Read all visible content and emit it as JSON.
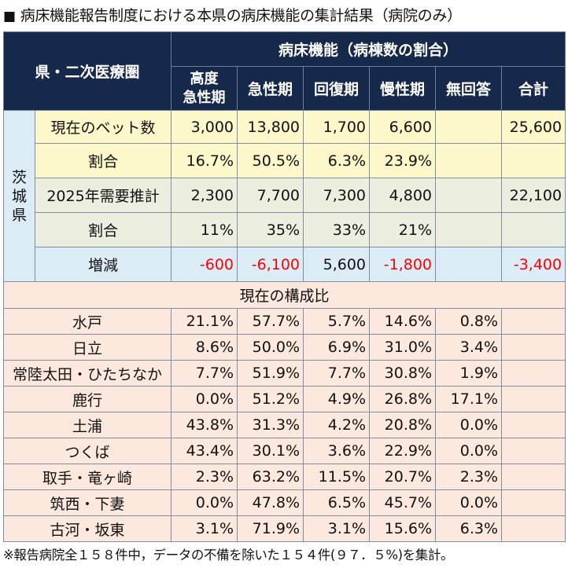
{
  "title": "病床機能報告制度における本県の病床機能の集計結果（病院のみ）",
  "title_marker": "■",
  "header": {
    "region_col": "県・二次医療圏",
    "group": "病床機能（病棟数の割合）",
    "columns": [
      "高度\n急性期",
      "急性期",
      "回復期",
      "慢性期",
      "無回答",
      "合計"
    ],
    "col_line1": "高度",
    "col_line2": "急性期"
  },
  "prefecture": {
    "name": "茨城県",
    "chars": [
      "茨",
      "城",
      "県"
    ],
    "rows": [
      {
        "label": "現在のベット数",
        "values": [
          "3,000",
          "13,800",
          "1,700",
          "6,600",
          "",
          "25,600"
        ]
      },
      {
        "label": "割合",
        "values": [
          "16.7%",
          "50.5%",
          "6.3%",
          "23.9%",
          "",
          ""
        ]
      },
      {
        "label": "2025年需要推計",
        "values": [
          "2,300",
          "7,700",
          "7,300",
          "4,800",
          "",
          "22,100"
        ]
      },
      {
        "label": "割合",
        "values": [
          "11%",
          "35%",
          "33%",
          "21%",
          "",
          ""
        ]
      },
      {
        "label": "増減",
        "values": [
          "-600",
          "-6,100",
          "5,600",
          "-1,800",
          "",
          "-3,400"
        ]
      }
    ]
  },
  "composition": {
    "heading": "現在の構成比",
    "rows": [
      {
        "label": "水戸",
        "values": [
          "21.1%",
          "57.7%",
          "5.7%",
          "14.6%",
          "0.8%",
          ""
        ]
      },
      {
        "label": "日立",
        "values": [
          "8.6%",
          "50.0%",
          "6.9%",
          "31.0%",
          "3.4%",
          ""
        ]
      },
      {
        "label": "常陸太田・ひたちなか",
        "values": [
          "7.7%",
          "51.9%",
          "7.7%",
          "30.8%",
          "1.9%",
          ""
        ]
      },
      {
        "label": "鹿行",
        "values": [
          "0.0%",
          "51.2%",
          "4.9%",
          "26.8%",
          "17.1%",
          ""
        ]
      },
      {
        "label": "土浦",
        "values": [
          "43.8%",
          "31.3%",
          "4.2%",
          "20.8%",
          "0.0%",
          ""
        ]
      },
      {
        "label": "つくば",
        "values": [
          "43.4%",
          "30.1%",
          "3.6%",
          "22.9%",
          "0.0%",
          ""
        ]
      },
      {
        "label": "取手・竜ヶ崎",
        "values": [
          "2.3%",
          "63.2%",
          "11.5%",
          "20.7%",
          "2.3%",
          ""
        ]
      },
      {
        "label": "筑西・下妻",
        "values": [
          "0.0%",
          "47.8%",
          "6.5%",
          "45.7%",
          "0.0%",
          ""
        ]
      },
      {
        "label": "古河・坂東",
        "values": [
          "3.1%",
          "71.9%",
          "3.1%",
          "15.6%",
          "6.3%",
          ""
        ]
      }
    ]
  },
  "footer": "※報告病院全１５８件中，データの不備を除いた１５４件(９７．５%)を集計。",
  "colors": {
    "header_bg": "#17294a",
    "yellow_row": "#fdf8c9",
    "gray_row": "#eceee0",
    "blue_row": "#dcecf6",
    "pink_row": "#fce8dc",
    "negative": "#ff0000"
  }
}
